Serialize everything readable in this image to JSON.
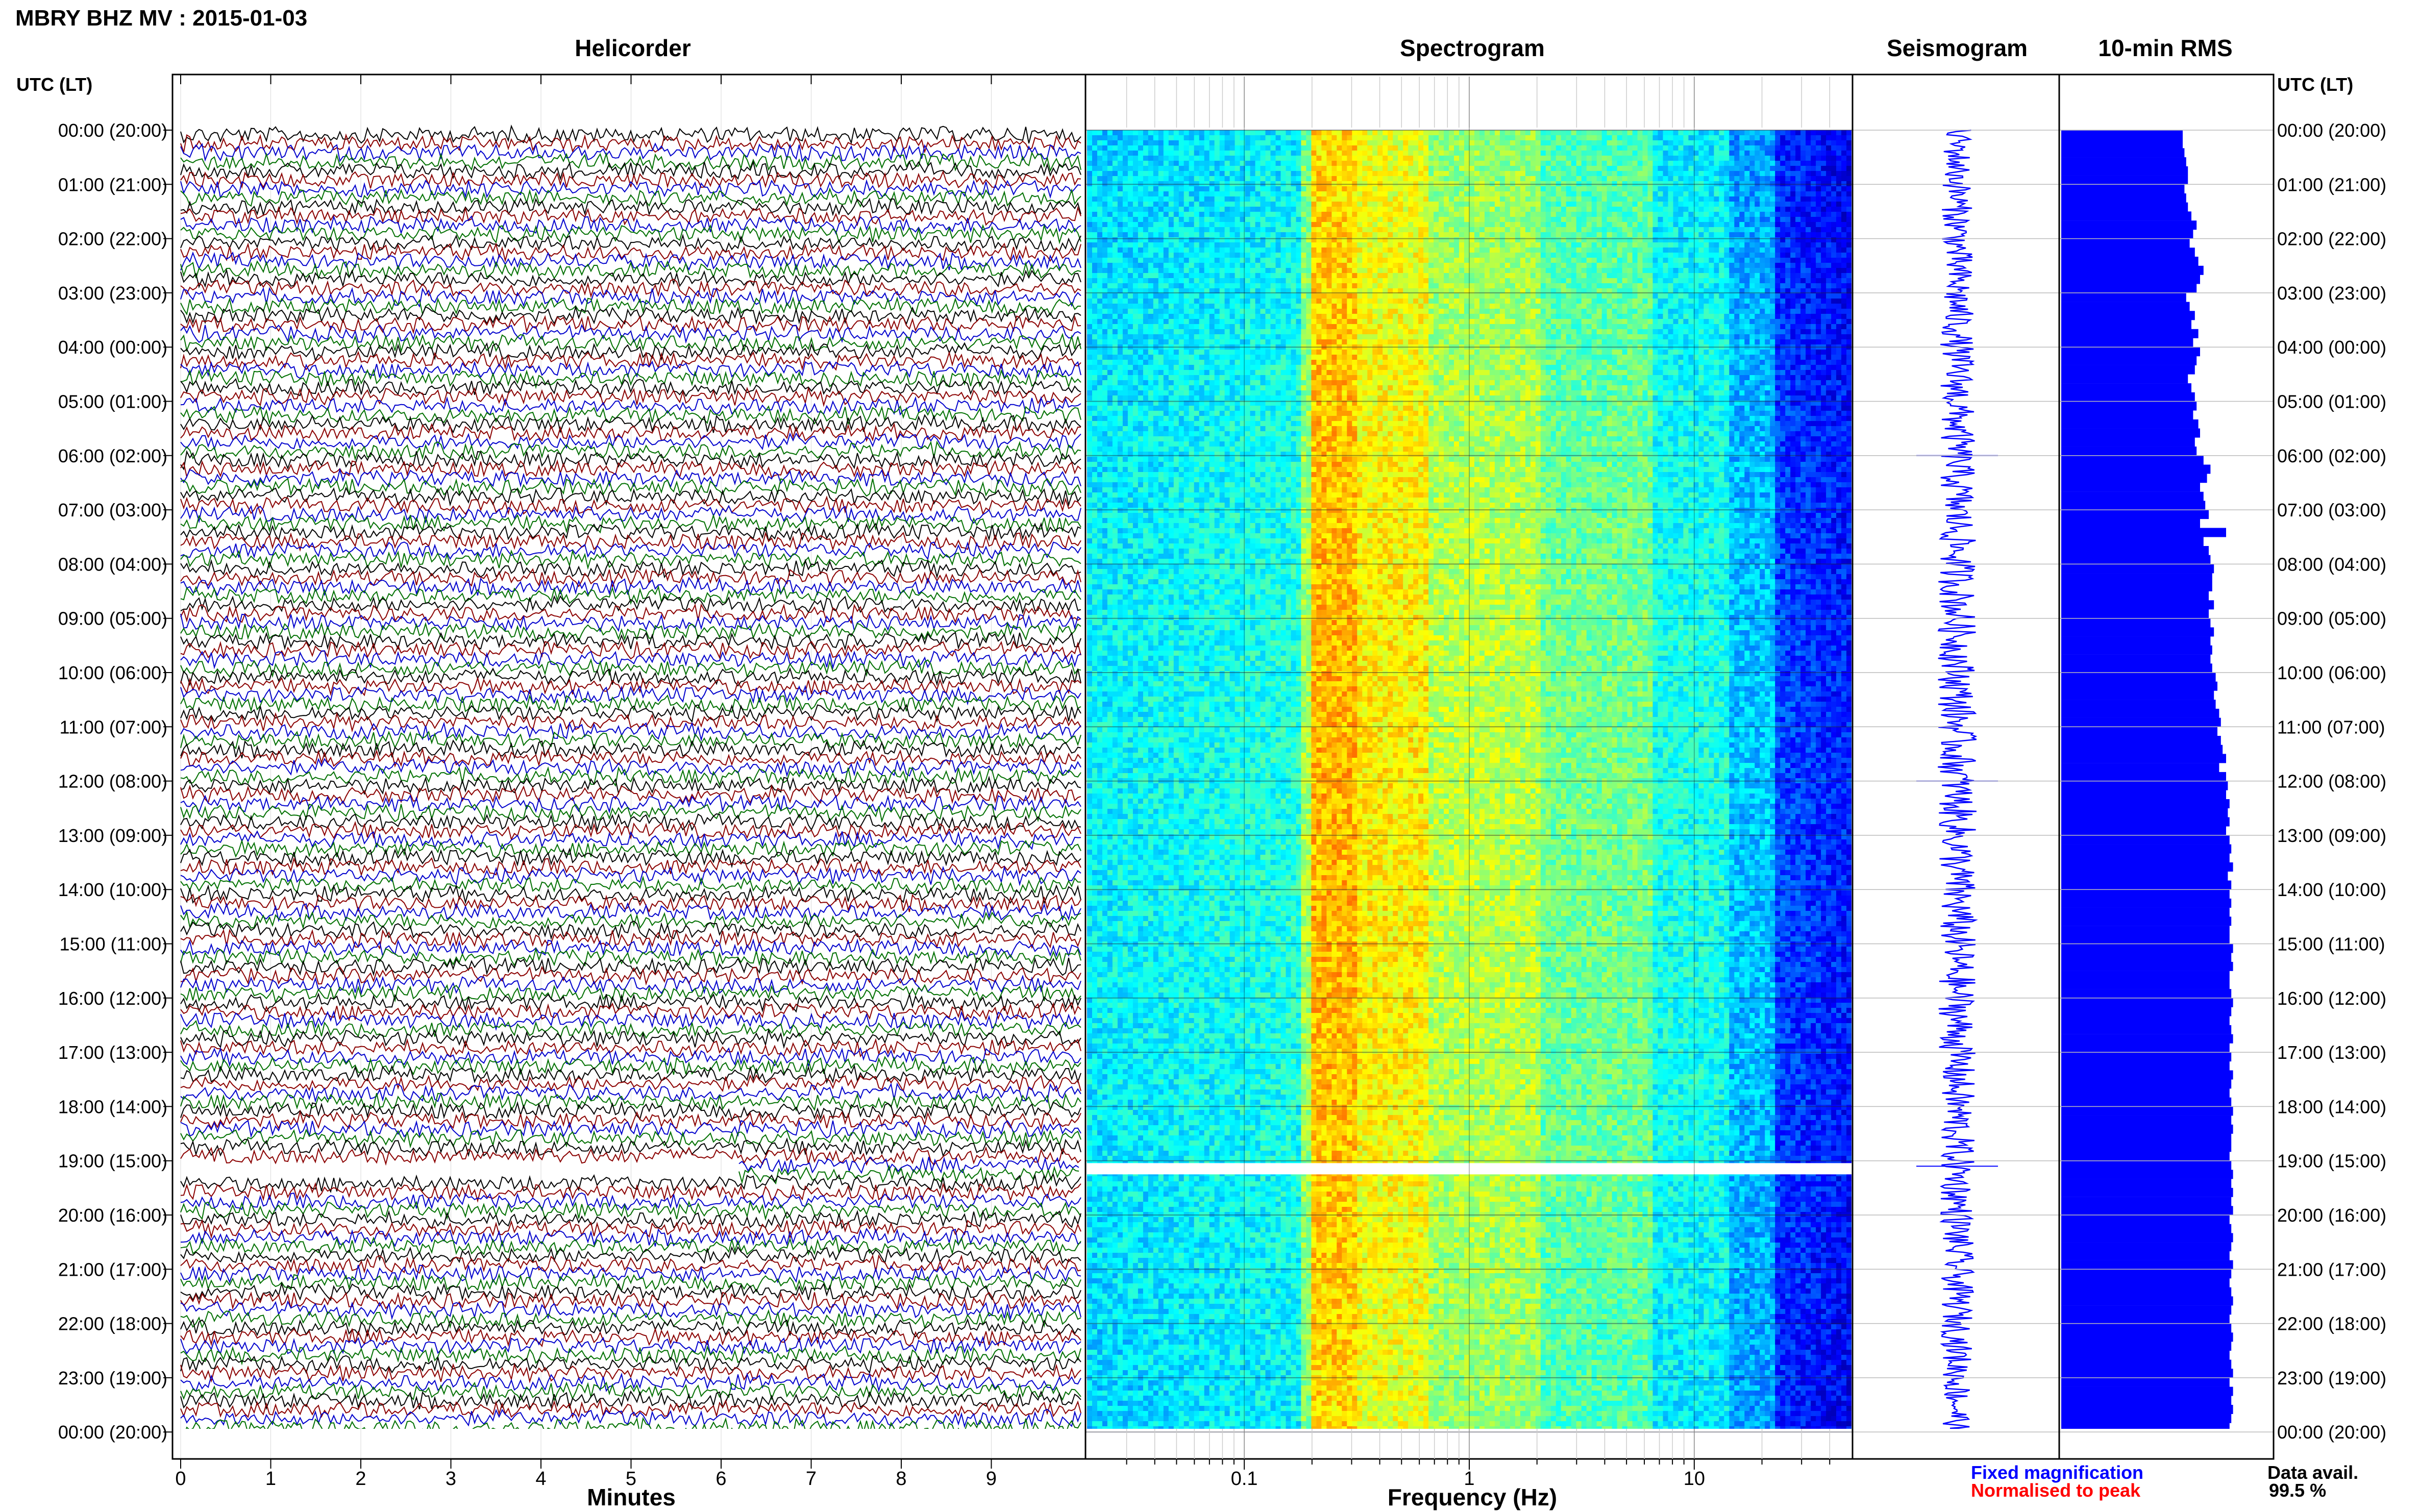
{
  "header": {
    "title": "MBRY BHZ MV : 2015-01-03",
    "tz_label_left": "UTC (LT)",
    "tz_label_right": "UTC (LT)"
  },
  "panels": {
    "helicorder": "Helicorder",
    "spectrogram": "Spectrogram",
    "seismogram": "Seismogram",
    "rms": "10-min RMS"
  },
  "axes": {
    "helicorder_xlabel": "Minutes",
    "spectrogram_xlabel": "Frequency (Hz)"
  },
  "footer": {
    "fixed_magnification": "Fixed magnification",
    "normalised_to_peak": "Normalised to peak",
    "data_avail_label": "Data avail.",
    "data_avail_value": "99.5 %"
  },
  "colors": {
    "fixed_magnification": "#0000ff",
    "normalised_to_peak": "#ff0000",
    "trace_colors": [
      "#000000",
      "#8b0000",
      "#0000cd",
      "#007000"
    ],
    "rms_bars": "#0000ff",
    "seismogram": "#0000ff"
  },
  "chart_data": [
    {
      "type": "line",
      "name": "helicorder",
      "xlabel": "Minutes",
      "x_ticks": [
        "0",
        "1",
        "2",
        "3",
        "4",
        "5",
        "6",
        "7",
        "8",
        "9"
      ],
      "xlim": [
        0,
        10
      ],
      "row_ticks": [
        "00:00 (20:00)",
        "01:00 (21:00)",
        "02:00 (22:00)",
        "03:00 (23:00)",
        "04:00 (00:00)",
        "05:00 (01:00)",
        "06:00 (02:00)",
        "07:00 (03:00)",
        "08:00 (04:00)",
        "09:00 (05:00)",
        "10:00 (06:00)",
        "11:00 (07:00)",
        "12:00 (08:00)",
        "13:00 (09:00)",
        "14:00 (10:00)",
        "15:00 (11:00)",
        "16:00 (12:00)",
        "17:00 (13:00)",
        "18:00 (14:00)",
        "19:00 (15:00)",
        "20:00 (16:00)",
        "21:00 (17:00)",
        "22:00 (18:00)",
        "23:00 (19:00)",
        "00:00 (20:00)"
      ],
      "rows_per_hour": 6,
      "data_gap": {
        "hour": 19,
        "start_minute": 0,
        "end_minute": 6.2
      }
    },
    {
      "type": "heatmap",
      "name": "spectrogram",
      "xlabel": "Frequency (Hz)",
      "x_scale": "log",
      "xlim": [
        0.02,
        50
      ],
      "x_ticks": [
        "0.1",
        "1",
        "10"
      ],
      "colormap": "jet",
      "gap_hour": 19.1
    },
    {
      "type": "line",
      "name": "seismogram",
      "spikes_at_hours": [
        6.0,
        12.0,
        19.1
      ]
    },
    {
      "type": "bar",
      "name": "10-min RMS",
      "interval_minutes": 10,
      "values": [
        0.7,
        0.7,
        0.71,
        0.72,
        0.73,
        0.73,
        0.71,
        0.72,
        0.73,
        0.75,
        0.78,
        0.76,
        0.74,
        0.77,
        0.79,
        0.82,
        0.8,
        0.78,
        0.72,
        0.74,
        0.77,
        0.75,
        0.79,
        0.76,
        0.8,
        0.78,
        0.77,
        0.73,
        0.75,
        0.77,
        0.78,
        0.76,
        0.79,
        0.8,
        0.77,
        0.78,
        0.82,
        0.86,
        0.84,
        0.8,
        0.82,
        0.83,
        0.85,
        0.8,
        0.95,
        0.82,
        0.85,
        0.86,
        0.88,
        0.87,
        0.87,
        0.85,
        0.88,
        0.85,
        0.86,
        0.88,
        0.86,
        0.87,
        0.86,
        0.87,
        0.89,
        0.9,
        0.88,
        0.89,
        0.91,
        0.92,
        0.9,
        0.92,
        0.93,
        0.95,
        0.91,
        0.95,
        0.96,
        0.95,
        0.97,
        0.96,
        0.97,
        0.95,
        0.97,
        0.98,
        0.97,
        0.99,
        0.96,
        0.98,
        0.97,
        0.98,
        0.97,
        0.98,
        0.97,
        0.97,
        0.99,
        0.98,
        0.99,
        0.97,
        0.97,
        0.98,
        0.99,
        0.98,
        0.97,
        0.98,
        0.99,
        0.97,
        0.98,
        0.97,
        0.99,
        0.98,
        0.97,
        0.98,
        0.99,
        0.98,
        0.99,
        0.98,
        0.98,
        0.97,
        0.98,
        0.99,
        0.98,
        0.99,
        0.98,
        0.99,
        0.97,
        0.98,
        0.99,
        0.98,
        0.97,
        0.99,
        0.98,
        0.97,
        0.98,
        0.99,
        0.98,
        0.97,
        0.98,
        0.99,
        0.98,
        0.97,
        0.98,
        0.99,
        0.97,
        0.99,
        0.98,
        0.99,
        0.98,
        0.97
      ]
    }
  ]
}
